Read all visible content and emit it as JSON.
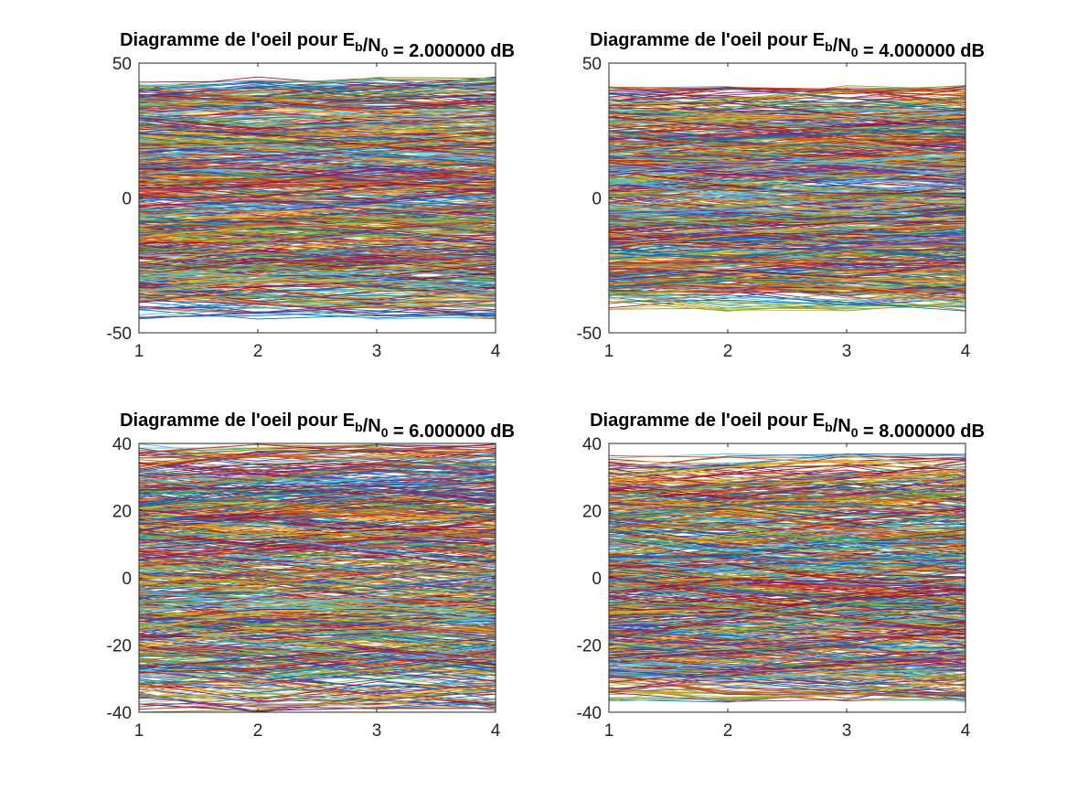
{
  "figure": {
    "background": "#ffffff",
    "axis_color": "#262626",
    "line_palette": [
      "#0072bd",
      "#d95319",
      "#edb120",
      "#7e2f8e",
      "#77ac30",
      "#4dbeee",
      "#a2142f"
    ]
  },
  "chart_data": [
    {
      "type": "line",
      "title": {
        "prefix": "Diagramme de l'oeil pour E",
        "sub1": "b",
        "mid": "/N",
        "sub2": "0",
        "suffix": " = 2.000000 dB"
      },
      "xlabel": "",
      "ylabel": "",
      "xlim": [
        1,
        4
      ],
      "ylim": [
        -50,
        50
      ],
      "xticks": [
        1,
        2,
        3,
        4
      ],
      "yticks": [
        -50,
        0,
        50
      ],
      "grid": false,
      "legend": "none",
      "trace_amplitude": 40,
      "trace_count": 700
    },
    {
      "type": "line",
      "title": {
        "prefix": "Diagramme de l'oeil pour E",
        "sub1": "b",
        "mid": "/N",
        "sub2": "0",
        "suffix": " = 4.000000 dB"
      },
      "xlabel": "",
      "ylabel": "",
      "xlim": [
        1,
        4
      ],
      "ylim": [
        -50,
        50
      ],
      "xticks": [
        1,
        2,
        3,
        4
      ],
      "yticks": [
        -50,
        0,
        50
      ],
      "grid": false,
      "legend": "none",
      "trace_amplitude": 37,
      "trace_count": 700
    },
    {
      "type": "line",
      "title": {
        "prefix": "Diagramme de l'oeil pour E",
        "sub1": "b",
        "mid": "/N",
        "sub2": "0",
        "suffix": " = 6.000000 dB"
      },
      "xlabel": "",
      "ylabel": "",
      "xlim": [
        1,
        4
      ],
      "ylim": [
        -40,
        40
      ],
      "xticks": [
        1,
        2,
        3,
        4
      ],
      "yticks": [
        -40,
        -20,
        0,
        20,
        40
      ],
      "grid": false,
      "legend": "none",
      "trace_amplitude": 35,
      "trace_count": 700
    },
    {
      "type": "line",
      "title": {
        "prefix": "Diagramme de l'oeil pour E",
        "sub1": "b",
        "mid": "/N",
        "sub2": "0",
        "suffix": " = 8.000000 dB"
      },
      "xlabel": "",
      "ylabel": "",
      "xlim": [
        1,
        4
      ],
      "ylim": [
        -40,
        40
      ],
      "xticks": [
        1,
        2,
        3,
        4
      ],
      "yticks": [
        -40,
        -20,
        0,
        20,
        40
      ],
      "grid": false,
      "legend": "none",
      "trace_amplitude": 32,
      "trace_count": 700
    }
  ]
}
